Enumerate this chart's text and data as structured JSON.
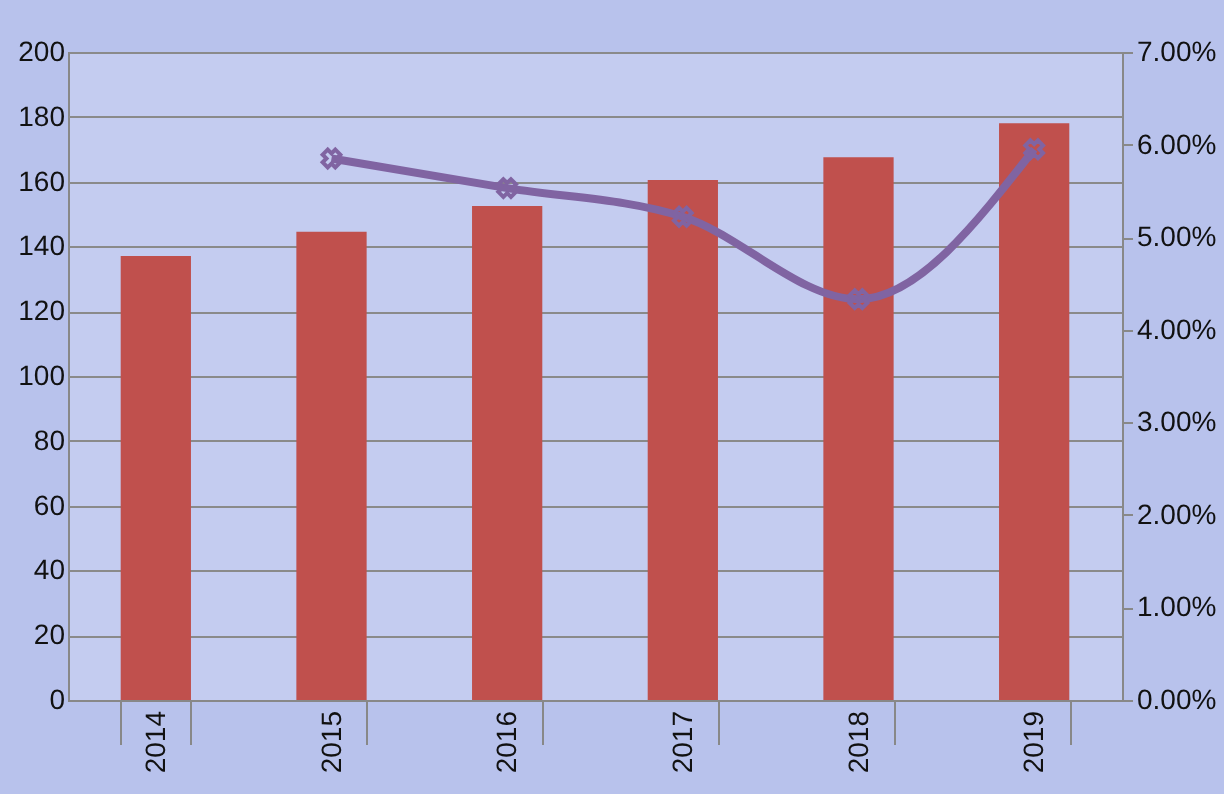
{
  "chart_data": {
    "type": "bar",
    "categories": [
      "2014",
      "2015",
      "2016",
      "2017",
      "2018",
      "2019"
    ],
    "series": [
      {
        "color": "#c0504d",
        "values": [
          137,
          144.5,
          152.5,
          160.5,
          167.5,
          178
        ]
      },
      {
        "type": "line",
        "axis": "y2",
        "color": "#8064a2",
        "marker": "cross",
        "values": [
          null,
          5.85,
          5.53,
          5.22,
          4.33,
          5.95
        ]
      }
    ],
    "ylim": [
      0,
      200
    ],
    "yticks": [
      0,
      20,
      40,
      60,
      80,
      100,
      120,
      140,
      160,
      180,
      200
    ],
    "y2lim": [
      0,
      7
    ],
    "y2ticks": [
      {
        "value": 0,
        "label": "0.00%"
      },
      {
        "value": 1,
        "label": "1.00%"
      },
      {
        "value": 2,
        "label": "2.00%"
      },
      {
        "value": 3,
        "label": "3.00%"
      },
      {
        "value": 4,
        "label": "4.00%"
      },
      {
        "value": 5,
        "label": "5.00%"
      },
      {
        "value": 6,
        "label": "6.00%"
      },
      {
        "value": 7,
        "label": "7.00%"
      }
    ],
    "grid": "y"
  }
}
